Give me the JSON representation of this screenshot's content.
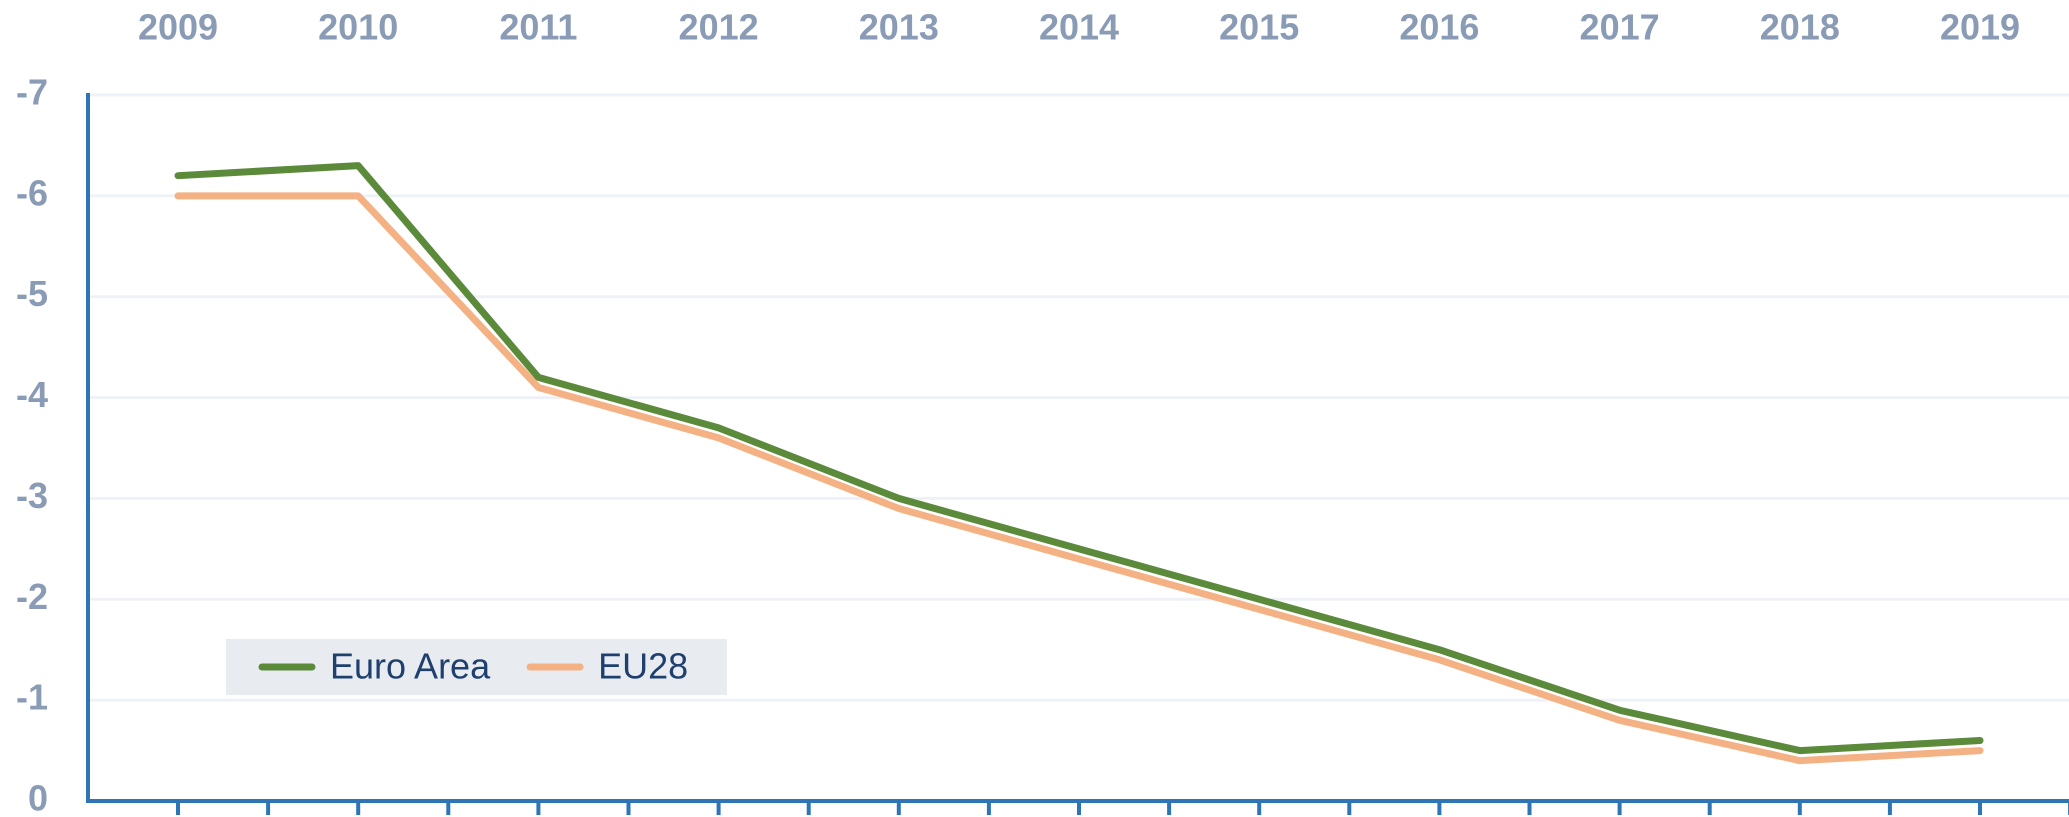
{
  "chart_data": {
    "type": "line",
    "categories": [
      "2009",
      "2010",
      "2011",
      "2012",
      "2013",
      "2014",
      "2015",
      "2016",
      "2017",
      "2018",
      "2019"
    ],
    "series": [
      {
        "name": "Euro Area",
        "color": "#5a8a3a",
        "values": [
          -6.2,
          -6.3,
          -4.2,
          -3.7,
          -3.0,
          -2.5,
          -2.0,
          -1.5,
          -0.9,
          -0.5,
          -0.6
        ]
      },
      {
        "name": "EU28",
        "color": "#f4b183",
        "values": [
          -6.0,
          -6.0,
          -4.1,
          -3.6,
          -2.9,
          -2.4,
          -1.9,
          -1.4,
          -0.8,
          -0.4,
          -0.5
        ]
      }
    ],
    "ylim": [
      0,
      -7
    ],
    "yticks": [
      0,
      -1,
      -2,
      -3,
      -4,
      -5,
      -6,
      -7
    ],
    "grid": true,
    "legend": "lower left"
  }
}
